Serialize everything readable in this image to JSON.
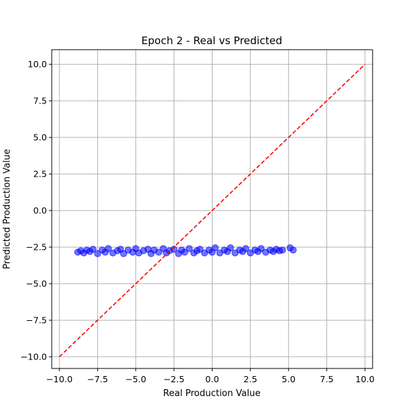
{
  "chart_data": {
    "type": "scatter",
    "title": "Epoch 2 - Real vs Predicted",
    "xlabel": "Real Production Value",
    "ylabel": "Predicted Production Value",
    "xlim": [
      -10.5,
      10.5
    ],
    "ylim": [
      -10.8,
      11.0
    ],
    "grid": true,
    "x_ticks": [
      -10.0,
      -7.5,
      -5.0,
      -2.5,
      0.0,
      2.5,
      5.0,
      7.5,
      10.0
    ],
    "y_ticks": [
      -10.0,
      -7.5,
      -5.0,
      -2.5,
      0.0,
      2.5,
      5.0,
      7.5,
      10.0
    ],
    "x_tick_labels": [
      "−10.0",
      "−7.5",
      "−5.0",
      "−2.5",
      "0.0",
      "2.5",
      "5.0",
      "7.5",
      "10.0"
    ],
    "y_tick_labels": [
      "−10.0",
      "−7.5",
      "−5.0",
      "−2.5",
      "0.0",
      "2.5",
      "5.0",
      "7.5",
      "10.0"
    ],
    "series": [
      {
        "marker": "scatter",
        "color": "#0000ff",
        "points": [
          [
            -8.8,
            -2.85
          ],
          [
            -8.6,
            -2.75
          ],
          [
            -8.4,
            -2.9
          ],
          [
            -8.2,
            -2.7
          ],
          [
            -8.0,
            -2.8
          ],
          [
            -7.8,
            -2.65
          ],
          [
            -7.5,
            -2.95
          ],
          [
            -7.2,
            -2.7
          ],
          [
            -7.0,
            -2.85
          ],
          [
            -6.8,
            -2.6
          ],
          [
            -6.5,
            -2.9
          ],
          [
            -6.2,
            -2.75
          ],
          [
            -6.0,
            -2.65
          ],
          [
            -5.8,
            -2.95
          ],
          [
            -5.5,
            -2.7
          ],
          [
            -5.2,
            -2.85
          ],
          [
            -5.0,
            -2.6
          ],
          [
            -4.8,
            -2.9
          ],
          [
            -4.5,
            -2.75
          ],
          [
            -4.2,
            -2.65
          ],
          [
            -4.0,
            -2.95
          ],
          [
            -3.8,
            -2.7
          ],
          [
            -3.5,
            -2.85
          ],
          [
            -3.2,
            -2.6
          ],
          [
            -3.0,
            -2.9
          ],
          [
            -2.8,
            -2.75
          ],
          [
            -2.5,
            -2.65
          ],
          [
            -2.2,
            -2.95
          ],
          [
            -2.0,
            -2.7
          ],
          [
            -1.8,
            -2.85
          ],
          [
            -1.5,
            -2.6
          ],
          [
            -1.2,
            -2.9
          ],
          [
            -1.0,
            -2.75
          ],
          [
            -0.8,
            -2.65
          ],
          [
            -0.5,
            -2.9
          ],
          [
            -0.2,
            -2.7
          ],
          [
            0.0,
            -2.85
          ],
          [
            0.2,
            -2.55
          ],
          [
            0.5,
            -2.9
          ],
          [
            0.8,
            -2.7
          ],
          [
            1.0,
            -2.8
          ],
          [
            1.2,
            -2.55
          ],
          [
            1.5,
            -2.9
          ],
          [
            1.8,
            -2.7
          ],
          [
            2.0,
            -2.8
          ],
          [
            2.2,
            -2.6
          ],
          [
            2.5,
            -2.9
          ],
          [
            2.8,
            -2.7
          ],
          [
            3.0,
            -2.8
          ],
          [
            3.2,
            -2.6
          ],
          [
            3.5,
            -2.85
          ],
          [
            3.8,
            -2.7
          ],
          [
            4.0,
            -2.8
          ],
          [
            4.2,
            -2.65
          ],
          [
            4.4,
            -2.75
          ],
          [
            4.6,
            -2.7
          ],
          [
            5.1,
            -2.55
          ],
          [
            5.3,
            -2.7
          ]
        ]
      },
      {
        "marker": "line",
        "style": "dashed",
        "color": "#ff0000",
        "x": [
          -10.0,
          10.0
        ],
        "y": [
          -10.0,
          10.0
        ]
      }
    ]
  }
}
